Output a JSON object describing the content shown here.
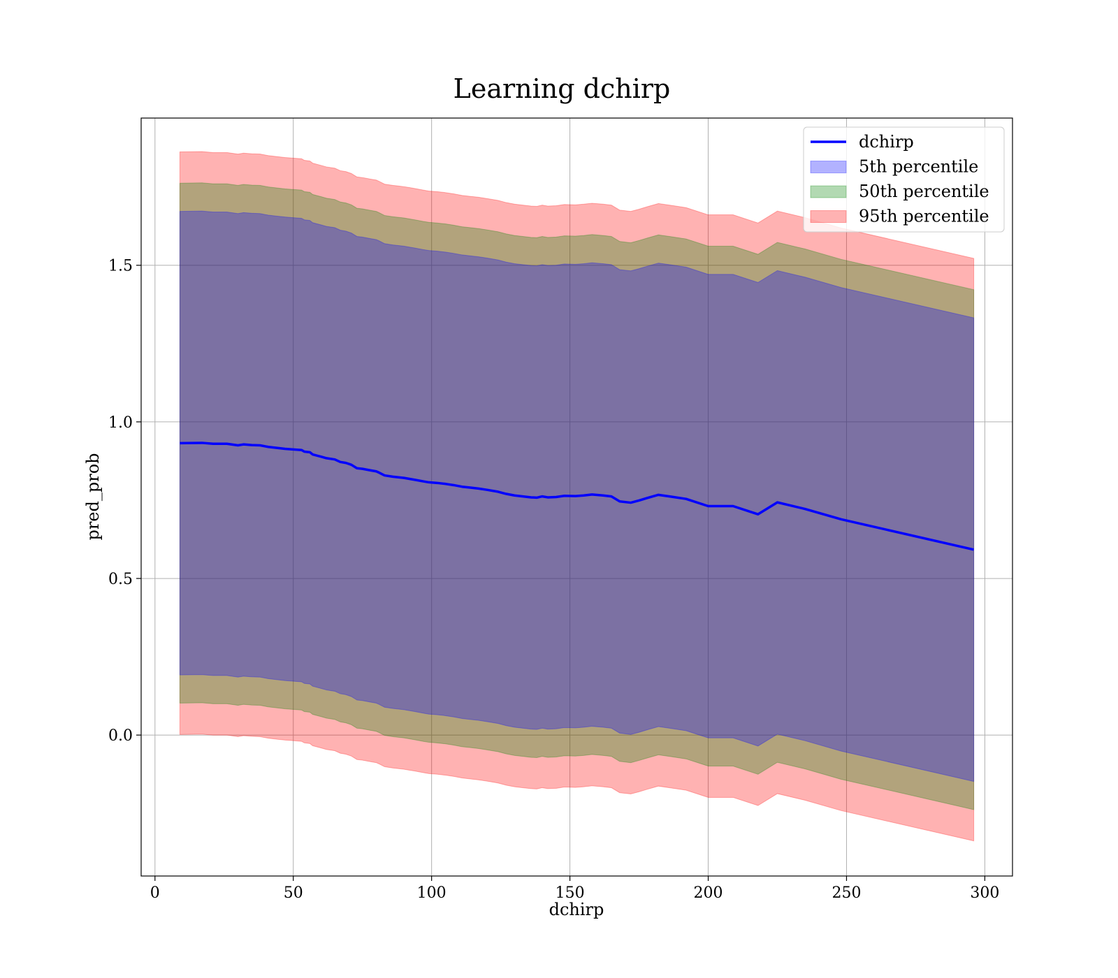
{
  "chart_data": {
    "type": "line",
    "title": "Learning dchirp",
    "xlabel": "dchirp",
    "ylabel": "pred_prob",
    "xlim": [
      -5,
      310
    ],
    "ylim": [
      -0.45,
      1.97
    ],
    "xticks": [
      0,
      50,
      100,
      150,
      200,
      250,
      300
    ],
    "yticks": [
      0.0,
      0.5,
      1.0,
      1.5
    ],
    "xtick_labels": [
      "0",
      "50",
      "100",
      "150",
      "200",
      "250",
      "300"
    ],
    "ytick_labels": [
      "0.0",
      "0.5",
      "1.0",
      "1.5"
    ],
    "grid": true,
    "legend_position": "top-right",
    "x": [
      9,
      17,
      21,
      26,
      30,
      32,
      35,
      38,
      41,
      44,
      47,
      50,
      53,
      54,
      56,
      57,
      60,
      62,
      65,
      67,
      69,
      71,
      73,
      75,
      78,
      80,
      81,
      83,
      86,
      88,
      90,
      92,
      94,
      97,
      99,
      102,
      105,
      108,
      111,
      114,
      117,
      120,
      124,
      127,
      130,
      133,
      136,
      138,
      140,
      142,
      145,
      148,
      152,
      155,
      158,
      162,
      165,
      168,
      172,
      175,
      178,
      182,
      186,
      192,
      200,
      209,
      218,
      225,
      235,
      248,
      296
    ],
    "series": [
      {
        "name": "dchirp",
        "color": "#0000ff",
        "values": [
          0.932,
          0.933,
          0.93,
          0.93,
          0.925,
          0.928,
          0.926,
          0.925,
          0.92,
          0.917,
          0.914,
          0.912,
          0.91,
          0.905,
          0.903,
          0.896,
          0.889,
          0.884,
          0.88,
          0.872,
          0.869,
          0.863,
          0.852,
          0.85,
          0.845,
          0.842,
          0.838,
          0.829,
          0.825,
          0.823,
          0.821,
          0.818,
          0.815,
          0.81,
          0.807,
          0.805,
          0.802,
          0.798,
          0.793,
          0.79,
          0.787,
          0.783,
          0.777,
          0.77,
          0.765,
          0.762,
          0.759,
          0.758,
          0.762,
          0.759,
          0.76,
          0.764,
          0.763,
          0.765,
          0.768,
          0.765,
          0.762,
          0.746,
          0.742,
          0.749,
          0.757,
          0.767,
          0.762,
          0.754,
          0.731,
          0.731,
          0.705,
          0.743,
          0.722,
          0.689,
          0.592
        ]
      }
    ],
    "bands": [
      {
        "name": "5th percentile",
        "color": "#0000ff",
        "half_width": 0.74
      },
      {
        "name": "50th percentile",
        "color": "#008000",
        "half_width": 0.83
      },
      {
        "name": "95th percentile",
        "color": "#ff0000",
        "half_width": 0.93
      }
    ]
  }
}
